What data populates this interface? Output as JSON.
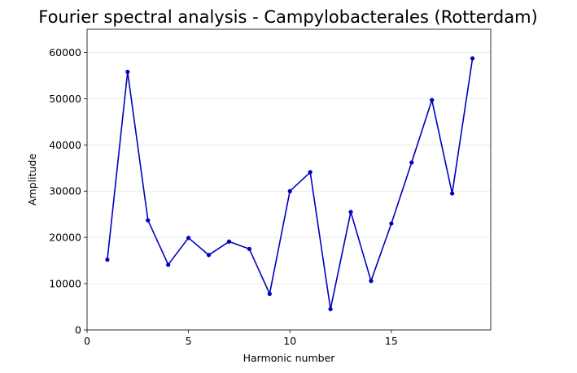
{
  "chart_data": {
    "type": "line",
    "title": "Fourier spectral analysis - Campylobacterales (Rotterdam)",
    "xlabel": "Harmonic number",
    "ylabel": "Amplitude",
    "xlim": [
      0,
      19.9
    ],
    "ylim": [
      0,
      65000
    ],
    "xticks": [
      0,
      5,
      10,
      15
    ],
    "yticks": [
      0,
      10000,
      20000,
      30000,
      40000,
      50000,
      60000
    ],
    "grid": "horizontal",
    "series": [
      {
        "color": "#0000bf",
        "x": [
          1,
          2,
          3,
          4,
          5,
          6,
          7,
          8,
          9,
          10,
          11,
          12,
          13,
          14,
          15,
          16,
          17,
          18,
          19
        ],
        "values": [
          15200,
          55800,
          23700,
          14100,
          19900,
          16200,
          19100,
          17500,
          7800,
          30000,
          34100,
          4500,
          25500,
          10600,
          23000,
          36200,
          49700,
          29500,
          58700
        ]
      }
    ]
  }
}
